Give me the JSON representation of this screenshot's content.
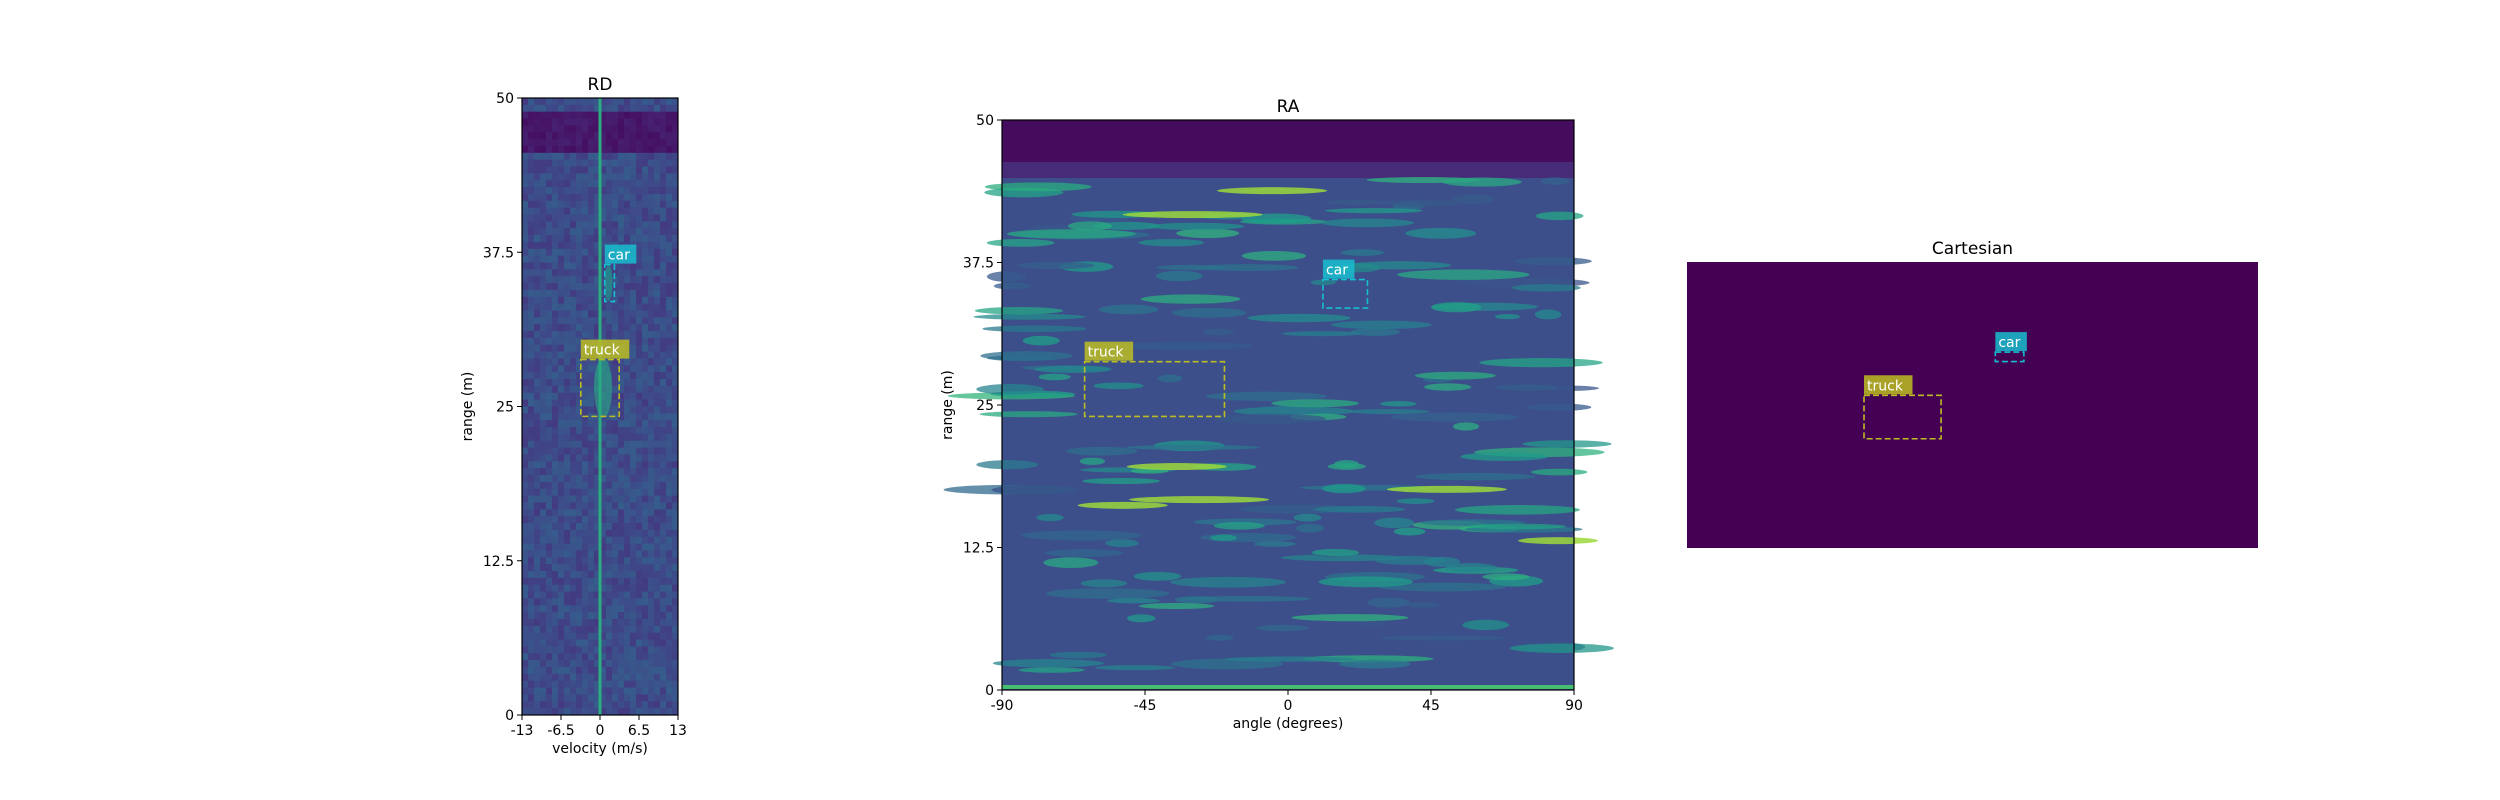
{
  "chart_data": [
    {
      "type": "heatmap",
      "title": "RD",
      "xlabel": "velocity (m/s)",
      "ylabel": "range (m)",
      "xlim": [
        -13,
        13
      ],
      "ylim": [
        0,
        50
      ],
      "xticks": [
        "-13",
        "-6.5",
        "0",
        "6.5",
        "13"
      ],
      "yticks": [
        "0",
        "12.5",
        "25",
        "37.5",
        "50"
      ],
      "colormap": "viridis",
      "boxes": [
        {
          "label": "car",
          "x0": 0.8,
          "x1": 2.4,
          "y0": 33.5,
          "y1": 36.5,
          "color": "#17becf"
        },
        {
          "label": "truck",
          "x0": -3.2,
          "x1": 3.2,
          "y0": 24.2,
          "y1": 28.8,
          "color": "#bcbd22"
        }
      ]
    },
    {
      "type": "heatmap",
      "title": "RA",
      "xlabel": "angle (degrees)",
      "ylabel": "range (m)",
      "xlim": [
        -90,
        90
      ],
      "ylim": [
        0,
        50
      ],
      "xticks": [
        "-90",
        "-45",
        "0",
        "45",
        "90"
      ],
      "yticks": [
        "0",
        "12.5",
        "25",
        "37.5",
        "50"
      ],
      "colormap": "viridis",
      "boxes": [
        {
          "label": "car",
          "x0": 11,
          "x1": 25,
          "y0": 33.5,
          "y1": 36.0,
          "color": "#17becf"
        },
        {
          "label": "truck",
          "x0": -64,
          "x1": -20,
          "y0": 24.0,
          "y1": 28.8,
          "color": "#bcbd22"
        }
      ]
    },
    {
      "type": "heatmap",
      "title": "Cartesian",
      "xlabel": "",
      "ylabel": "",
      "xlim": [
        0,
        1
      ],
      "ylim": [
        0,
        1
      ],
      "background": "#440154",
      "boxes": [
        {
          "label": "car",
          "x0": 0.54,
          "x1": 0.59,
          "y0": 0.652,
          "y1": 0.685,
          "color": "#17becf"
        },
        {
          "label": "truck",
          "x0": 0.31,
          "x1": 0.445,
          "y0": 0.382,
          "y1": 0.534,
          "color": "#bcbd22"
        }
      ]
    }
  ]
}
